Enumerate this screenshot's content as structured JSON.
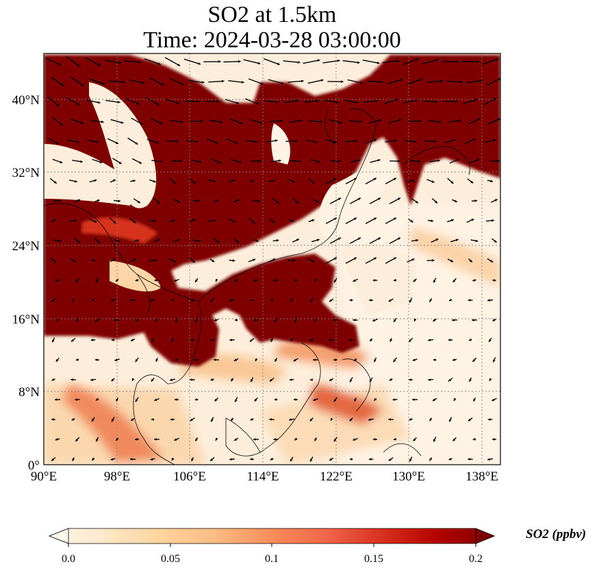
{
  "title": {
    "line1": "SO2 at 1.5km",
    "line2": "Time: 2024-03-28 03:00:00"
  },
  "map": {
    "lon_range": [
      90,
      140
    ],
    "lat_range": [
      0,
      45
    ],
    "lon_ticks": [
      "90°E",
      "98°E",
      "106°E",
      "114°E",
      "122°E",
      "130°E",
      "138°E"
    ],
    "lat_ticks": [
      "0°",
      "8°N",
      "16°N",
      "24°N",
      "32°N",
      "40°N"
    ],
    "gridlines": true,
    "field_variable": "SO2",
    "vectors": "wind"
  },
  "colorbar": {
    "label": "SO2 (ppbv)",
    "ticks": [
      "0.0",
      "0.05",
      "0.1",
      "0.15",
      "0.2"
    ],
    "range": [
      0.0,
      0.2
    ],
    "extend": "both",
    "colormap": [
      "#fff7ec",
      "#fee8c8",
      "#fdd49e",
      "#fdbb84",
      "#fc8d59",
      "#ef6548",
      "#d7301f",
      "#b30000",
      "#7f0000"
    ]
  }
}
